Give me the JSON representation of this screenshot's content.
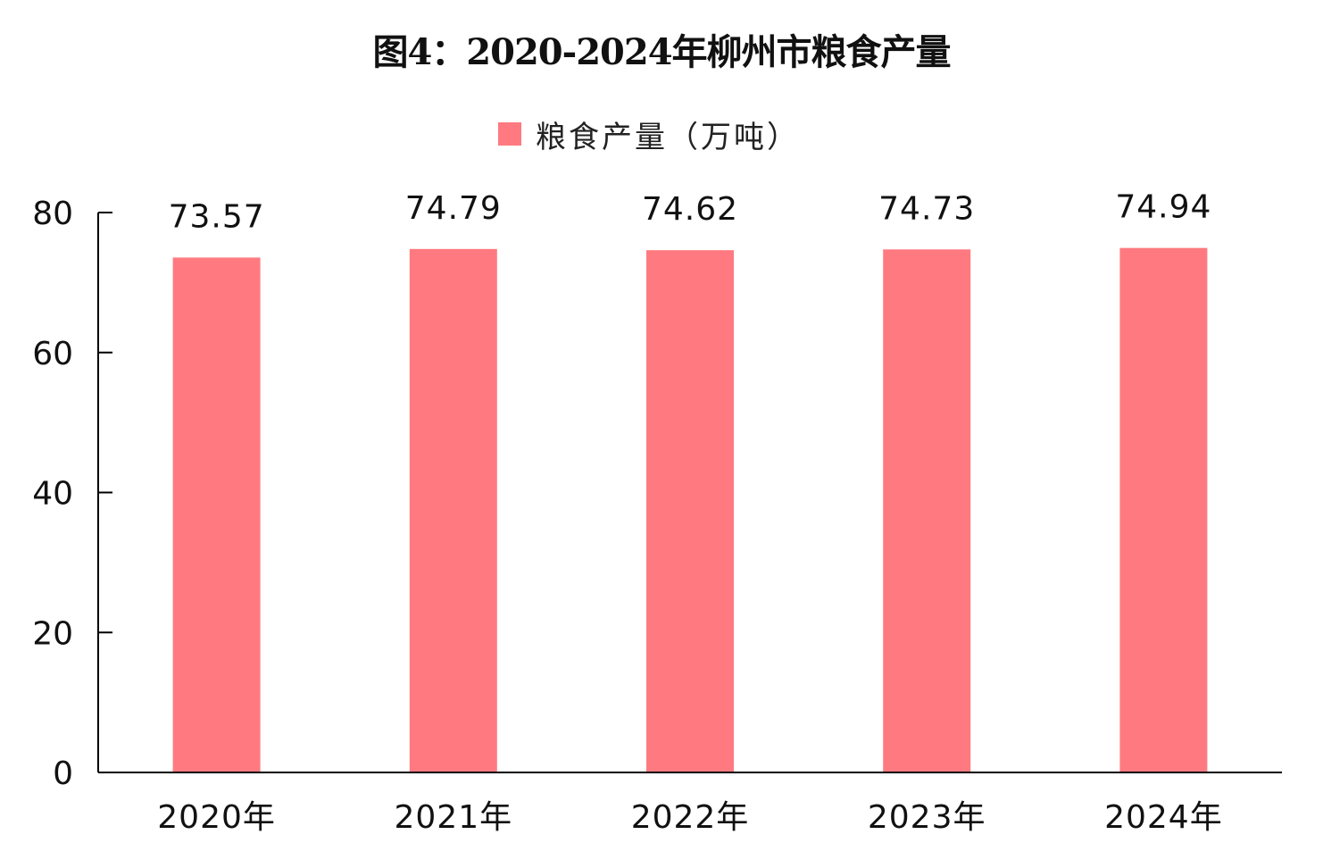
{
  "chart_data": {
    "type": "bar",
    "title": "图4：2020-2024年柳州市粮食产量",
    "categories": [
      "2020年",
      "2021年",
      "2022年",
      "2023年",
      "2024年"
    ],
    "series": [
      {
        "name": "粮食产量（万吨）",
        "values": [
          73.57,
          74.79,
          74.62,
          74.73,
          74.94
        ],
        "value_labels": [
          "73.57",
          "74.79",
          "74.62",
          "74.73",
          "74.94"
        ],
        "color": "#ff7a80"
      }
    ],
    "xlabel": "",
    "ylabel": "",
    "ylim": [
      0,
      80
    ],
    "yticks": [
      0,
      20,
      40,
      60,
      80
    ],
    "grid": false,
    "legend": "top-center"
  },
  "colors": {
    "bar": "#ff7a80",
    "axis": "#000000",
    "text": "#111111"
  }
}
